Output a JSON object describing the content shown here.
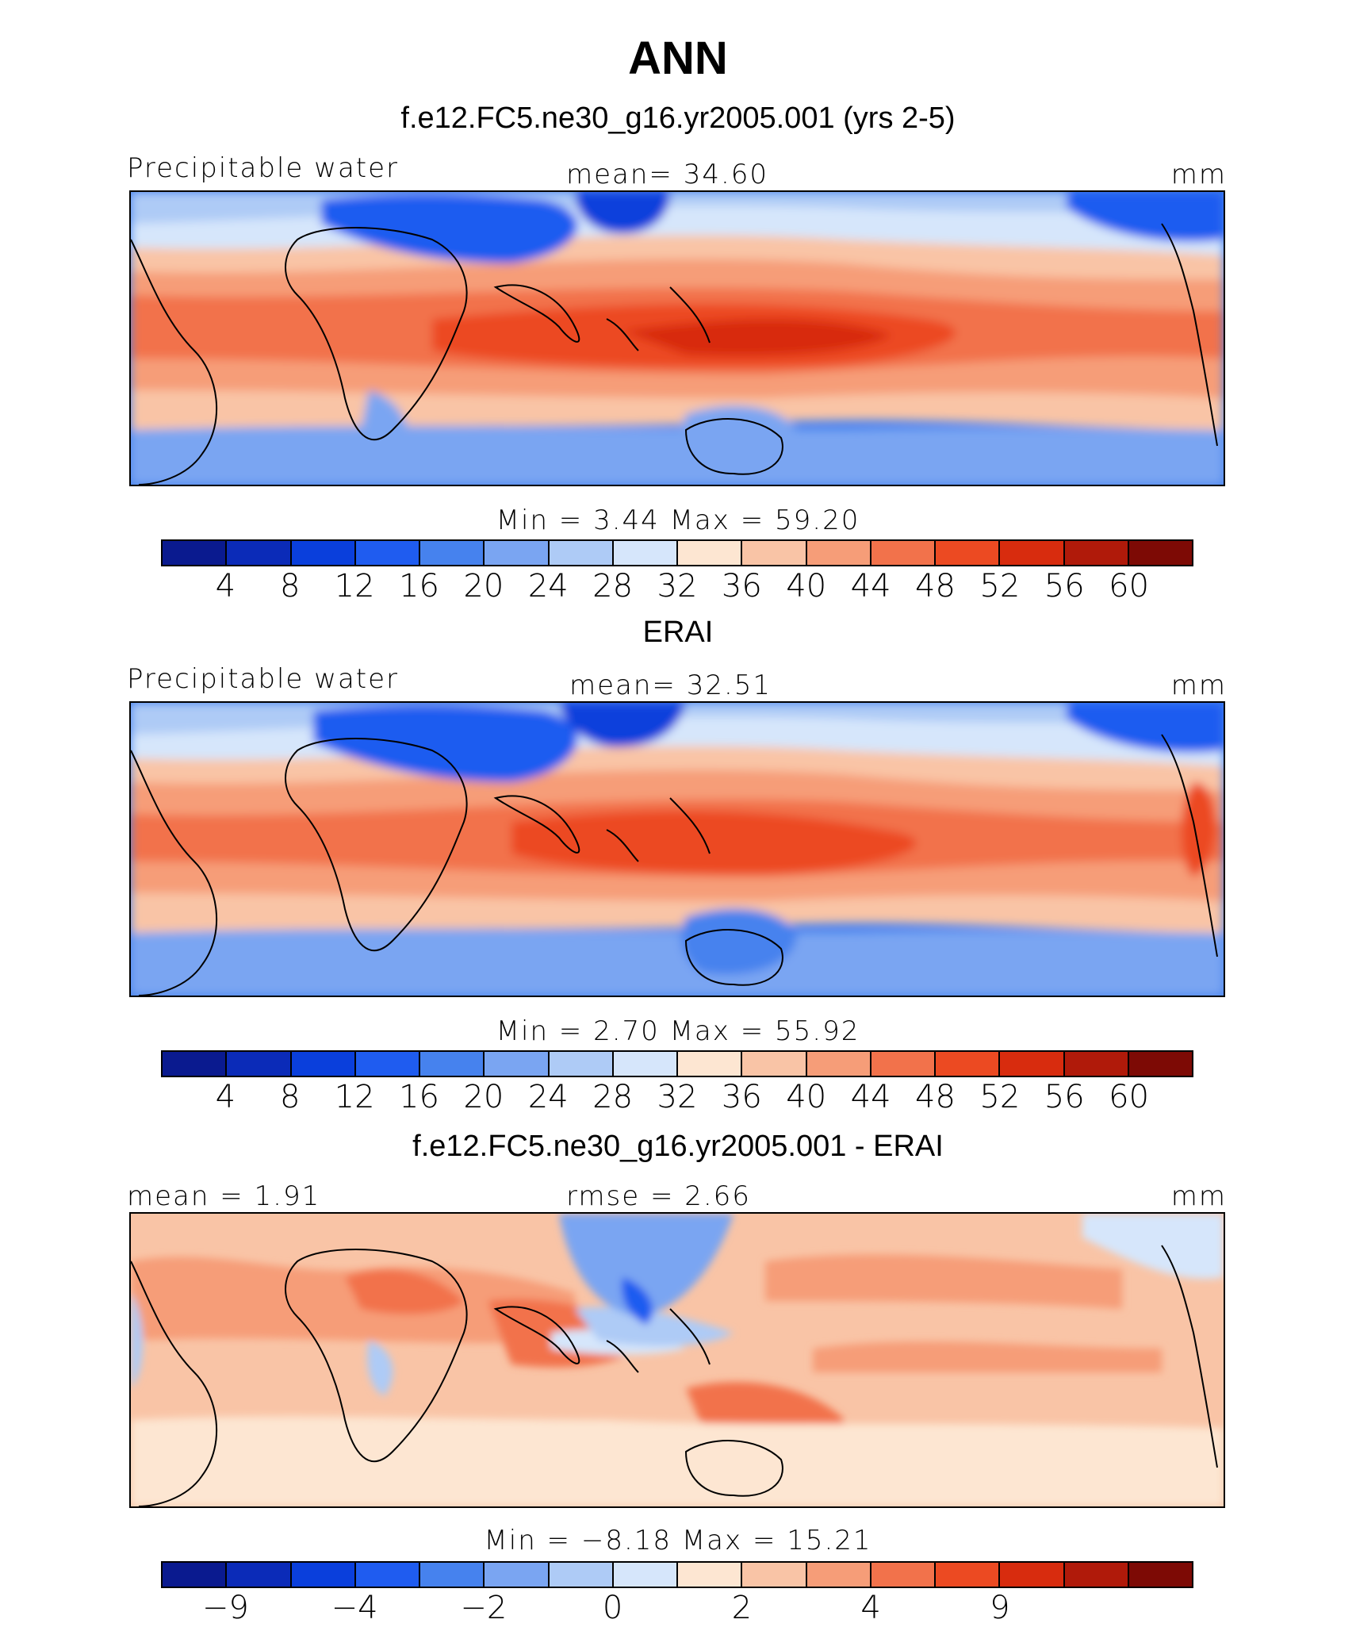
{
  "title": "ANN",
  "palette": [
    "#0a1a8f",
    "#0b2bb8",
    "#0a3fdc",
    "#1f5cf0",
    "#4682ee",
    "#7aa5f2",
    "#aecbf6",
    "#d6e6fb",
    "#fde6d2",
    "#f9c4a6",
    "#f69d78",
    "#f2724b",
    "#ec4a22",
    "#d82c0e",
    "#b01a0a",
    "#7d0a05"
  ],
  "panels": [
    {
      "subtitle": "f.e12.FC5.ne30_g16.yr2005.001 (yrs 2-5)",
      "left_label": "Precipitable water",
      "center_label": "mean=   34.60",
      "units": "mm",
      "minmax": "Min  =    3.44  Max  =   59.20",
      "ticks": [
        "4",
        "8",
        "12",
        "16",
        "20",
        "24",
        "28",
        "32",
        "36",
        "40",
        "44",
        "48",
        "52",
        "56",
        "60"
      ],
      "kind": "model"
    },
    {
      "subtitle": "ERAI",
      "left_label": "Precipitable water",
      "center_label": "mean=   32.51",
      "units": "mm",
      "minmax": "Min  =    2.70  Max  =   55.92",
      "ticks": [
        "4",
        "8",
        "12",
        "16",
        "20",
        "24",
        "28",
        "32",
        "36",
        "40",
        "44",
        "48",
        "52",
        "56",
        "60"
      ],
      "kind": "obs"
    },
    {
      "subtitle": "f.e12.FC5.ne30_g16.yr2005.001 - ERAI",
      "left_label": "mean =    1.91",
      "center_label": "rmse =    2.66",
      "units": "mm",
      "minmax": "Min  =   −8.18  Max  =   15.21",
      "ticks": [
        "−9",
        "−4",
        "−2",
        "0",
        "2",
        "4",
        "9"
      ],
      "kind": "diff"
    }
  ]
}
